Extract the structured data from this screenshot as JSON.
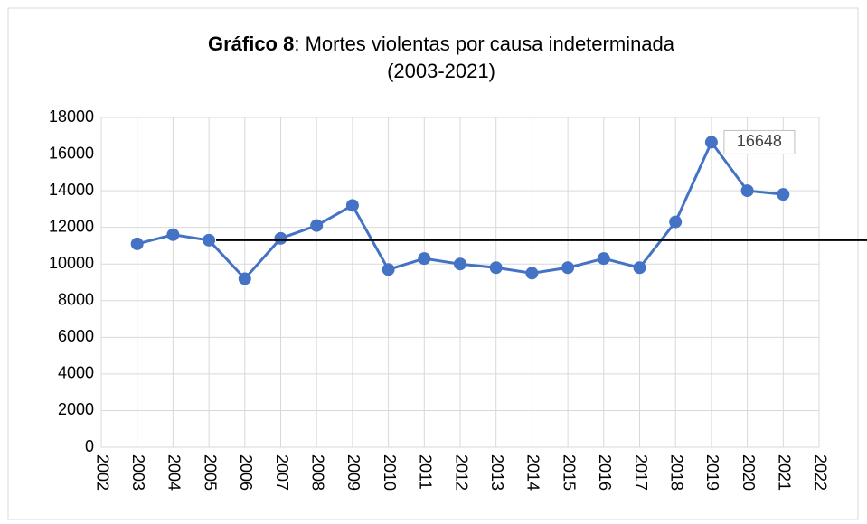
{
  "chart_data": {
    "type": "line",
    "title_bold": "Gráfico 8",
    "title": ": Mortes violentas por causa indeterminada",
    "subtitle": "(2003-2021)",
    "x": [
      2003,
      2004,
      2005,
      2006,
      2007,
      2008,
      2009,
      2010,
      2011,
      2012,
      2013,
      2014,
      2015,
      2016,
      2017,
      2018,
      2019,
      2020,
      2021
    ],
    "series": [
      {
        "color": "#4472c4",
        "values": [
          11100,
          11600,
          11300,
          9200,
          11400,
          12100,
          13200,
          9700,
          10300,
          10000,
          9800,
          9500,
          9800,
          10300,
          9800,
          12300,
          16648,
          14000,
          13800
        ]
      }
    ],
    "annotation": {
      "index": 16,
      "label": "16648"
    },
    "reference_line": {
      "value": 11300,
      "x_start": 2005.2,
      "color": "#000000"
    },
    "xlim": [
      2002,
      2022
    ],
    "xticks": [
      2002,
      2003,
      2004,
      2005,
      2006,
      2007,
      2008,
      2009,
      2010,
      2011,
      2012,
      2013,
      2014,
      2015,
      2016,
      2017,
      2018,
      2019,
      2020,
      2021,
      2022
    ],
    "ylim": [
      0,
      18000
    ],
    "yticks": [
      0,
      2000,
      4000,
      6000,
      8000,
      10000,
      12000,
      14000,
      16000,
      18000
    ],
    "grid": true
  }
}
